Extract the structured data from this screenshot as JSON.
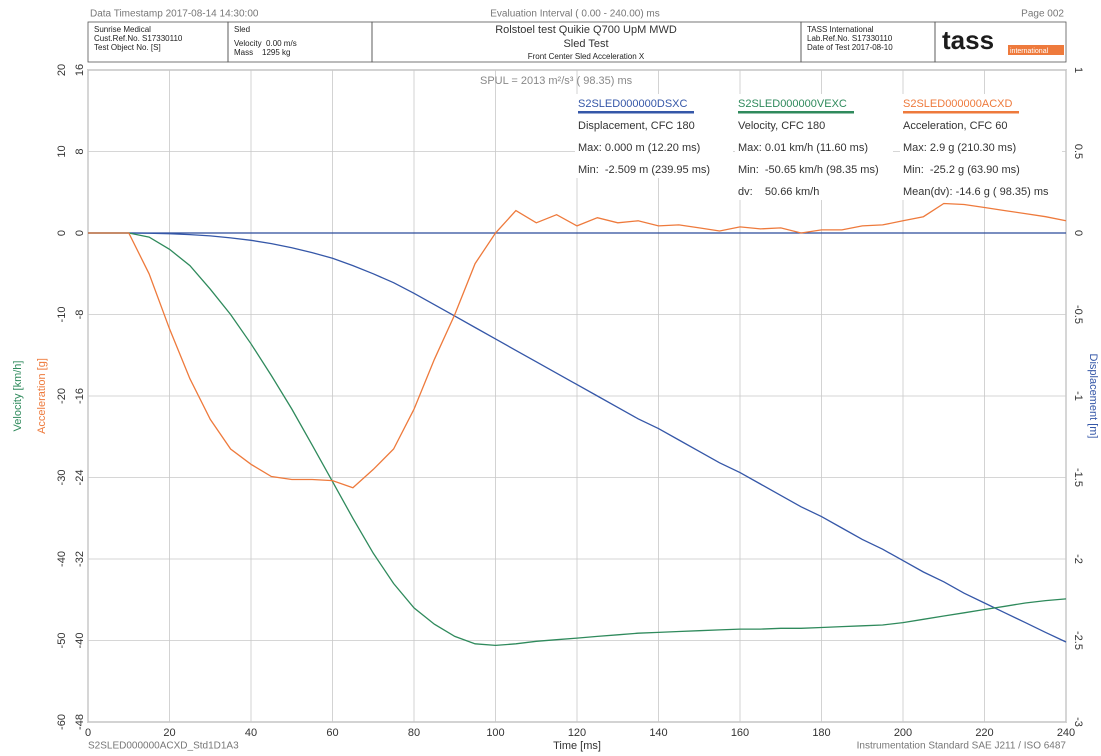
{
  "header": {
    "timestamp": "Data Timestamp 2017-08-14 14:30:00",
    "interval": "Evaluation Interval ( 0.00 - 240.00) ms",
    "page": "Page 002",
    "client": [
      "Sunrise Medical",
      "Cust.Ref.No. S17330110",
      "Test Object No. [S]"
    ],
    "sled": [
      "Sled",
      "Velocity  0.00 m/s",
      "Mass    1295 kg"
    ],
    "test": [
      "Rolstoel test Quikie Q700 UpM MWD",
      "Sled Test",
      "Front Center Sled Acceleration X"
    ],
    "lab": [
      "TASS International",
      "Lab.Ref.No. S17330110",
      "Date of Test 2017-08-10"
    ],
    "logo": "tass",
    "logo_sub": "international"
  },
  "footer": {
    "left": "S2SLED000000ACXD_Std1D1A3",
    "right": "Instrumentation Standard  SAE J211 / ISO 6487"
  },
  "chart_data": {
    "type": "line",
    "annotation": "SPUL =  2013 m²/s³  ( 98.35) ms",
    "xlabel": "Time [ms]",
    "xlim": [
      0,
      240
    ],
    "xticks": [
      0,
      20,
      40,
      60,
      80,
      100,
      120,
      140,
      160,
      180,
      200,
      220,
      240
    ],
    "ylabel": "Velocity [km/h]",
    "ylim": [
      -60,
      20
    ],
    "yticks": [
      20,
      10,
      0,
      -10,
      -20,
      -30,
      -40,
      -50,
      -60
    ],
    "y3label": "Acceleration [g]",
    "y3lim": [
      -48,
      16
    ],
    "y3ticks": [
      16,
      8,
      0,
      -8,
      -16,
      -24,
      -32,
      -40,
      -48
    ],
    "y2label": "Displacement [m]",
    "y2lim": [
      -3,
      1
    ],
    "y2ticks": [
      1,
      0.5,
      0,
      -0.5,
      -1,
      -1.5,
      -2,
      -2.5,
      -3
    ],
    "grid": true,
    "x": [
      0,
      5,
      10,
      15,
      20,
      25,
      30,
      35,
      40,
      45,
      50,
      55,
      60,
      65,
      70,
      75,
      80,
      85,
      90,
      95,
      100,
      105,
      110,
      115,
      120,
      125,
      130,
      135,
      140,
      145,
      150,
      155,
      160,
      165,
      170,
      175,
      180,
      185,
      190,
      195,
      200,
      205,
      210,
      215,
      220,
      225,
      230,
      235,
      240
    ],
    "series": [
      {
        "name": "S2SLED000000DSXC",
        "color": "#3557a8",
        "axis": "y2",
        "stats": [
          "Displacement, CFC 180",
          "Max: 0.000 m (12.20 ms)",
          "Min:  -2.509 m (239.95 ms)"
        ],
        "values": [
          0,
          0,
          0,
          -0.001,
          -0.004,
          -0.01,
          -0.018,
          -0.03,
          -0.045,
          -0.065,
          -0.09,
          -0.12,
          -0.155,
          -0.2,
          -0.25,
          -0.305,
          -0.37,
          -0.44,
          -0.51,
          -0.58,
          -0.65,
          -0.72,
          -0.79,
          -0.86,
          -0.93,
          -1.0,
          -1.07,
          -1.14,
          -1.2,
          -1.27,
          -1.34,
          -1.41,
          -1.47,
          -1.54,
          -1.61,
          -1.68,
          -1.74,
          -1.81,
          -1.88,
          -1.94,
          -2.01,
          -2.08,
          -2.14,
          -2.21,
          -2.27,
          -2.33,
          -2.39,
          -2.45,
          -2.509
        ]
      },
      {
        "name": "S2SLED000000VEXC",
        "color": "#2f8a5c",
        "axis": "y",
        "stats": [
          "Velocity, CFC 180",
          "Max: 0.01 km/h (11.60 ms)",
          "Min:  -50.65 km/h (98.35 ms)",
          "dv:    50.66 km/h"
        ],
        "values": [
          0,
          0,
          0,
          -0.5,
          -2,
          -4,
          -6.9,
          -10,
          -13.6,
          -17.5,
          -21.6,
          -26,
          -30.5,
          -35,
          -39.3,
          -43,
          -46,
          -48,
          -49.5,
          -50.4,
          -50.6,
          -50.4,
          -50.1,
          -49.9,
          -49.7,
          -49.5,
          -49.3,
          -49.1,
          -49,
          -48.9,
          -48.8,
          -48.7,
          -48.6,
          -48.6,
          -48.5,
          -48.5,
          -48.4,
          -48.3,
          -48.2,
          -48.1,
          -47.8,
          -47.4,
          -47,
          -46.6,
          -46.2,
          -45.8,
          -45.4,
          -45.1,
          -44.9
        ]
      },
      {
        "name": "S2SLED000000ACXD",
        "color": "#ee7a3c",
        "axis": "y3",
        "stats": [
          "Acceleration, CFC 60",
          "Max: 2.9 g (210.30 ms)",
          "Min:  -25.2 g (63.90 ms)",
          "Mean(dv): -14.6 g ( 98.35) ms"
        ],
        "values": [
          0,
          0,
          0,
          -4,
          -9.4,
          -14.3,
          -18.3,
          -21.2,
          -22.7,
          -23.9,
          -24.2,
          -24.2,
          -24.3,
          -25,
          -23.2,
          -21.2,
          -17.3,
          -12.4,
          -8,
          -3,
          0,
          2.2,
          1,
          1.8,
          0.7,
          1.5,
          1,
          1.2,
          0.7,
          0.8,
          0.5,
          0.2,
          0.6,
          0.4,
          0.5,
          0,
          0.3,
          0.3,
          0.7,
          0.8,
          1.2,
          1.6,
          2.9,
          2.8,
          2.5,
          2.2,
          1.9,
          1.6,
          1.2
        ]
      }
    ]
  }
}
